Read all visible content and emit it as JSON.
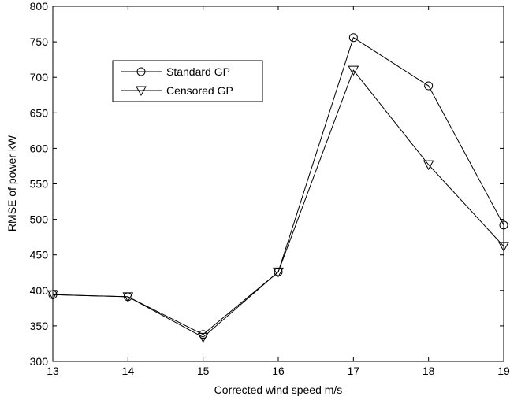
{
  "chart_data": {
    "type": "line",
    "title": "",
    "xlabel": "Corrected wind speed m/s",
    "ylabel": "RMSE of power kW",
    "x": [
      13,
      14,
      15,
      16,
      17,
      18,
      19
    ],
    "xlim": [
      13,
      19
    ],
    "ylim": [
      300,
      800
    ],
    "xticks": [
      "13",
      "14",
      "15",
      "16",
      "17",
      "18",
      "19"
    ],
    "yticks": [
      "300",
      "350",
      "400",
      "450",
      "500",
      "550",
      "600",
      "650",
      "700",
      "750",
      "800"
    ],
    "grid": false,
    "legend_position": "upper-left",
    "series": [
      {
        "name": "Standard GP",
        "marker": "circle",
        "color": "#000000",
        "values": [
          394,
          391,
          338,
          426,
          756,
          688,
          492
        ]
      },
      {
        "name": "Censored GP",
        "marker": "triangle-down",
        "color": "#000000",
        "values": [
          394,
          391,
          334,
          426,
          710,
          577,
          462
        ]
      }
    ]
  }
}
